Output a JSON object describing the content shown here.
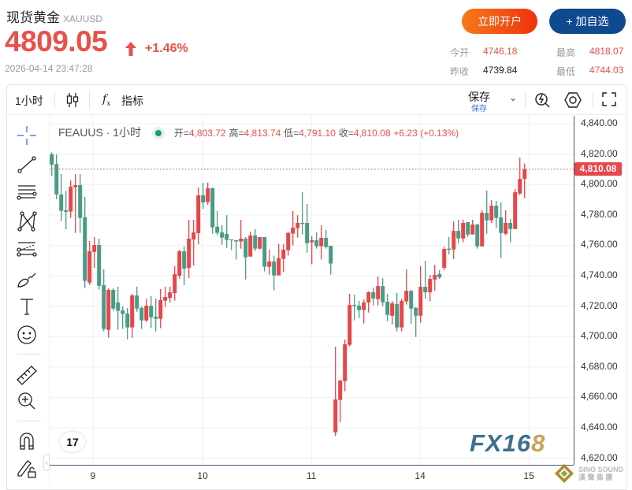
{
  "header": {
    "title": "现货黄金",
    "symbol": "XAUUSD",
    "price": "4809.05",
    "change_pct": "+1.46%",
    "timestamp": "2026-04-14 23:47:28",
    "open_account_label": "立即开户",
    "add_watch_label": "+ 加自选",
    "stats": {
      "open_label": "今开",
      "open": "4746.18",
      "high_label": "最高",
      "high": "4818.07",
      "prev_close_label": "昨收",
      "prev_close": "4739.84",
      "low_label": "最低",
      "low": "4744.03"
    }
  },
  "toolbar": {
    "interval": "1小时",
    "indicators_label": "指标",
    "save_label": "保存",
    "save_sub": "保存"
  },
  "legend": {
    "name": "FEAUUS · 1小时",
    "open_k": "开=",
    "open": "4,803.72",
    "high_k": "高=",
    "high": "4,813.74",
    "low_k": "低=",
    "low": "4,791.10",
    "close_k": "收=",
    "close": "4,810.08",
    "change": "+6.23 (+0.13%)"
  },
  "side_tools": [
    "crosshair-icon",
    "trend-line-icon",
    "parallel-lines-icon",
    "pattern-icon",
    "fib-icon",
    "brush-icon",
    "text-icon",
    "emoji-icon",
    "ruler-icon",
    "zoom-in-icon",
    "magnet-icon",
    "lock-drawing-icon"
  ],
  "watermark": {
    "brand": "FX16",
    "brand_gold": "8",
    "tv": "17"
  },
  "colors": {
    "up": "#e5474b",
    "down": "#4a9a85",
    "accent": "#e8514a",
    "watch": "#0f4a8f"
  },
  "chart_data": {
    "type": "candlestick",
    "last_price_label": "4,810.08",
    "ylim": [
      4615,
      4845
    ],
    "yticks": [
      "4,840.00",
      "4,820.00",
      "4,800.00",
      "4,780.00",
      "4,760.00",
      "4,740.00",
      "4,720.00",
      "4,700.00",
      "4,680.00",
      "4,660.00",
      "4,640.00",
      "4,620.00"
    ],
    "xticks": [
      "9",
      "10",
      "11",
      "14",
      "15"
    ],
    "ohlc": [
      [
        4819.8,
        4821.2,
        4805.6,
        4813.1
      ],
      [
        4813.4,
        4819.8,
        4790.4,
        4793.5
      ],
      [
        4793.4,
        4806.8,
        4776.0,
        4782.7
      ],
      [
        4783.0,
        4795.8,
        4770.6,
        4782.0
      ],
      [
        4782.2,
        4802.7,
        4778.0,
        4798.6
      ],
      [
        4798.2,
        4806.8,
        4768.2,
        4799.6
      ],
      [
        4799.6,
        4806.8,
        4768.2,
        4778.0
      ],
      [
        4778.5,
        4791.8,
        4731.9,
        4736.6
      ],
      [
        4735.5,
        4762.8,
        4734.0,
        4756.1
      ],
      [
        4755.7,
        4765.4,
        4745.2,
        4760.2
      ],
      [
        4760.2,
        4764.4,
        4730.9,
        4733.4
      ],
      [
        4733.8,
        4744.2,
        4703.4,
        4705.0
      ],
      [
        4704.4,
        4731.7,
        4699.2,
        4730.7
      ],
      [
        4730.7,
        4731.7,
        4716.9,
        4718.4
      ],
      [
        4722.4,
        4732.8,
        4704.4,
        4716.9
      ],
      [
        4717.2,
        4719.8,
        4705.0,
        4714.8
      ],
      [
        4715.1,
        4718.8,
        4698.2,
        4706.0
      ],
      [
        4706.0,
        4728.1,
        4699.2,
        4727.0
      ],
      [
        4727.0,
        4732.8,
        4716.3,
        4718.4
      ],
      [
        4718.8,
        4719.8,
        4705.0,
        4710.6
      ],
      [
        4710.6,
        4725.0,
        4709.6,
        4720.3
      ],
      [
        4720.3,
        4726.5,
        4705.5,
        4712.7
      ],
      [
        4713.1,
        4725.0,
        4703.4,
        4711.7
      ],
      [
        4711.7,
        4731.2,
        4705.5,
        4724.0
      ],
      [
        4723.6,
        4732.8,
        4719.5,
        4726.0
      ],
      [
        4725.3,
        4732.8,
        4722.4,
        4729.1
      ],
      [
        4728.6,
        4746.2,
        4723.6,
        4741.0
      ],
      [
        4740.0,
        4757.1,
        4738.0,
        4756.1
      ],
      [
        4756.1,
        4759.2,
        4733.8,
        4744.7
      ],
      [
        4745.2,
        4776.8,
        4738.5,
        4764.4
      ],
      [
        4763.8,
        4776.8,
        4746.7,
        4768.5
      ],
      [
        4768.0,
        4798.0,
        4760.7,
        4792.9
      ],
      [
        4792.9,
        4801.1,
        4784.0,
        4788.2
      ],
      [
        4788.4,
        4801.3,
        4786.7,
        4797.5
      ],
      [
        4797.5,
        4798.0,
        4767.7,
        4771.8
      ],
      [
        4772.2,
        4782.5,
        4766.6,
        4768.2
      ],
      [
        4768.5,
        4773.2,
        4760.4,
        4765.1
      ],
      [
        4767.5,
        4779.9,
        4758.3,
        4763.5
      ],
      [
        4763.9,
        4763.9,
        4756.8,
        4763.4
      ],
      [
        4763.4,
        4763.4,
        4750.6,
        4762.5
      ],
      [
        4762.5,
        4776.8,
        4757.8,
        4764.4
      ],
      [
        4764.4,
        4765.4,
        4737.6,
        4752.1
      ],
      [
        4752.6,
        4769.0,
        4752.5,
        4766.5
      ],
      [
        4766.5,
        4770.6,
        4756.3,
        4757.8
      ],
      [
        4757.8,
        4765.4,
        4757.3,
        4765.4
      ],
      [
        4765.4,
        4765.4,
        4742.8,
        4745.9
      ],
      [
        4745.9,
        4757.1,
        4740.7,
        4749.4
      ],
      [
        4749.4,
        4753.2,
        4730.4,
        4740.2
      ],
      [
        4740.2,
        4760.9,
        4740.2,
        4751.6
      ],
      [
        4751.1,
        4760.9,
        4742.3,
        4757.1
      ],
      [
        4756.8,
        4768.7,
        4753.2,
        4768.2
      ],
      [
        4767.7,
        4782.5,
        4759.9,
        4771.6
      ],
      [
        4771.3,
        4779.9,
        4765.1,
        4774.7
      ],
      [
        4774.7,
        4795.0,
        4767.1,
        4774.2
      ],
      [
        4774.7,
        4787.2,
        4755.2,
        4761.4
      ],
      [
        4762.0,
        4766.0,
        4747.5,
        4763.3
      ],
      [
        4763.3,
        4768.5,
        4757.8,
        4759.4
      ],
      [
        4759.4,
        4773.2,
        4750.6,
        4764.9
      ],
      [
        4764.9,
        4770.1,
        4757.8,
        4758.9
      ],
      [
        4759.7,
        4759.7,
        4740.7,
        4748.0
      ],
      [
        4637.0,
        4693.3,
        4634.5,
        4658.6
      ],
      [
        4658.3,
        4671.6,
        4643.8,
        4671.0
      ],
      [
        4670.7,
        4698.0,
        4664.0,
        4694.9
      ],
      [
        4694.6,
        4728.1,
        4693.5,
        4720.8
      ],
      [
        4720.8,
        4727.5,
        4710.6,
        4720.0
      ],
      [
        4720.3,
        4723.4,
        4712.2,
        4717.4
      ],
      [
        4717.4,
        4724.4,
        4708.5,
        4722.4
      ],
      [
        4722.4,
        4729.8,
        4715.8,
        4729.1
      ],
      [
        4729.1,
        4732.2,
        4720.5,
        4725.0
      ],
      [
        4724.6,
        4739.5,
        4720.5,
        4733.2
      ],
      [
        4733.2,
        4738.4,
        4720.0,
        4722.5
      ],
      [
        4722.9,
        4728.1,
        4710.1,
        4714.2
      ],
      [
        4713.7,
        4723.4,
        4708.0,
        4721.8
      ],
      [
        4721.3,
        4728.6,
        4703.4,
        4706.0
      ],
      [
        4706.0,
        4724.9,
        4703.4,
        4723.4
      ],
      [
        4723.1,
        4744.1,
        4721.0,
        4730.1
      ],
      [
        4730.1,
        4730.6,
        4708.5,
        4718.4
      ],
      [
        4718.9,
        4719.4,
        4699.7,
        4713.7
      ],
      [
        4713.7,
        4746.2,
        4709.1,
        4732.7
      ],
      [
        4732.7,
        4749.8,
        4724.9,
        4729.1
      ],
      [
        4729.1,
        4740.5,
        4723.1,
        4737.9
      ],
      [
        4737.5,
        4747.2,
        4730.1,
        4740.5
      ],
      [
        4741.0,
        4743.6,
        4737.9,
        4738.9
      ],
      [
        4745.2,
        4759.1,
        4743.6,
        4757.6
      ],
      [
        4757.8,
        4765.4,
        4754.0,
        4757.1
      ],
      [
        4757.3,
        4775.7,
        4751.0,
        4769.5
      ],
      [
        4769.5,
        4776.8,
        4761.4,
        4764.5
      ],
      [
        4764.5,
        4776.8,
        4762.0,
        4774.7
      ],
      [
        4775.2,
        4775.2,
        4765.5,
        4767.1
      ],
      [
        4767.1,
        4776.8,
        4767.1,
        4773.7
      ],
      [
        4773.7,
        4774.2,
        4757.8,
        4759.3
      ],
      [
        4759.3,
        4783.0,
        4759.3,
        4781.4
      ],
      [
        4781.4,
        4796.0,
        4767.6,
        4776.4
      ],
      [
        4776.4,
        4789.7,
        4774.7,
        4786.1
      ],
      [
        4786.1,
        4789.2,
        4771.3,
        4778.0
      ],
      [
        4778.3,
        4788.2,
        4751.6,
        4768.1
      ],
      [
        4767.6,
        4783.0,
        4766.6,
        4774.7
      ],
      [
        4774.7,
        4777.3,
        4762.0,
        4770.7
      ],
      [
        4770.7,
        4797.0,
        4770.7,
        4794.9
      ],
      [
        4794.1,
        4817.7,
        4793.0,
        4803.7
      ],
      [
        4803.72,
        4813.74,
        4791.1,
        4810.08
      ]
    ]
  }
}
